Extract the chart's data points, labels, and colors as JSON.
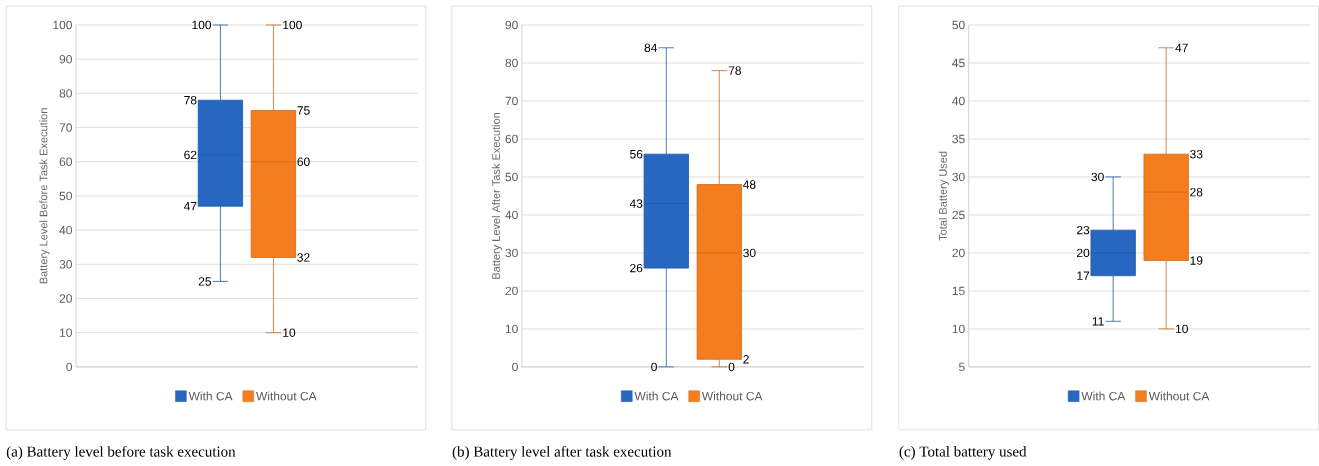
{
  "chart_data": [
    {
      "type": "box",
      "title": "(a) Battery level before task execution",
      "ylabel": "Battery Level Before Task Execution",
      "categories": [
        null
      ],
      "ylim": [
        0,
        100
      ],
      "yticks": [
        0,
        10,
        20,
        30,
        40,
        50,
        60,
        70,
        80,
        90,
        100
      ],
      "grid": "y",
      "legend": "bottom",
      "tick_labels": "y",
      "data_labels": true,
      "series": [
        {
          "name": "With CA",
          "color": "#2767c2",
          "boxes": [
            {
              "low": 25,
              "q1": 47,
              "median": 62,
              "q3": 78,
              "high": 100
            }
          ]
        },
        {
          "name": "Without CA",
          "color": "#f47d20",
          "boxes": [
            {
              "low": 10,
              "q1": 32,
              "median": 60,
              "q3": 75,
              "high": 100
            }
          ]
        }
      ],
      "annotations": [
        "25",
        "47",
        "62",
        "78",
        "100",
        "10",
        "32",
        "60",
        "75",
        "100"
      ]
    },
    {
      "type": "box",
      "title": "(b) Battery level after task execution",
      "ylabel": "Battery Level After Task Execution",
      "categories": [
        null
      ],
      "ylim": [
        0,
        90
      ],
      "yticks": [
        0,
        10,
        20,
        30,
        40,
        50,
        60,
        70,
        80,
        90
      ],
      "grid": "y",
      "legend": "bottom",
      "tick_labels": "y",
      "data_labels": true,
      "series": [
        {
          "name": "With CA",
          "color": "#2767c2",
          "boxes": [
            {
              "low": 0,
              "q1": 26,
              "median": 43,
              "q3": 56,
              "high": 84
            }
          ]
        },
        {
          "name": "Without CA",
          "color": "#f47d20",
          "boxes": [
            {
              "low": 0,
              "q1": 2,
              "median": 30,
              "q3": 48,
              "high": 78
            }
          ]
        }
      ],
      "annotations": [
        "0",
        "26",
        "43",
        "56",
        "84",
        "0",
        "2",
        "30",
        "48",
        "78"
      ]
    },
    {
      "type": "box",
      "title": "(c) Total battery used",
      "ylabel": "Total Battery Used",
      "categories": [
        null
      ],
      "ylim": [
        5,
        50
      ],
      "yticks": [
        5,
        10,
        15,
        20,
        25,
        30,
        35,
        40,
        45,
        50
      ],
      "grid": "y",
      "legend": "bottom",
      "tick_labels": "y",
      "data_labels": true,
      "series": [
        {
          "name": "With CA",
          "color": "#2767c2",
          "boxes": [
            {
              "low": 11,
              "q1": 17,
              "median": 20,
              "q3": 23,
              "high": 30
            }
          ]
        },
        {
          "name": "Without CA",
          "color": "#f47d20",
          "boxes": [
            {
              "low": 10,
              "q1": 19,
              "median": 28,
              "q3": 33,
              "high": 47
            }
          ]
        }
      ],
      "annotations": [
        "11",
        "17",
        "20",
        "23",
        "30",
        "10",
        "19",
        "28",
        "33",
        "47"
      ]
    }
  ]
}
